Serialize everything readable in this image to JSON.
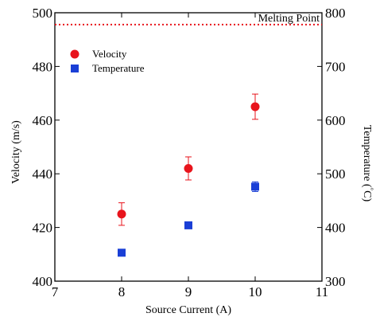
{
  "chart_data": {
    "type": "scatter",
    "title": "",
    "xlabel": "Source Current (A)",
    "ylabel": "Velocity (m/s)",
    "y2label_main": "Temperature (",
    "y2label_degree": "°",
    "y2label_unit": "C)",
    "xlim": [
      7,
      11
    ],
    "ylim": [
      400,
      500
    ],
    "y2lim": [
      300,
      800
    ],
    "x_ticks": [
      7,
      8,
      9,
      10,
      11
    ],
    "y_ticks": [
      400,
      420,
      440,
      460,
      480,
      500
    ],
    "y2_ticks": [
      300,
      400,
      500,
      600,
      700,
      800
    ],
    "grid": false,
    "legend_position": "upper-left",
    "series": [
      {
        "name": "Velocity",
        "axis": "left",
        "marker": "circle",
        "color": "#e8141c",
        "points": [
          {
            "x": 8,
            "y": 425,
            "err": 4.2
          },
          {
            "x": 9,
            "y": 442,
            "err": 4.3
          },
          {
            "x": 10,
            "y": 465,
            "err": 4.7
          }
        ]
      },
      {
        "name": "Temperature",
        "axis": "right",
        "marker": "square",
        "color": "#1a3fd6",
        "points": [
          {
            "x": 8,
            "y": 353,
            "err": 2
          },
          {
            "x": 9,
            "y": 404,
            "err": 5
          },
          {
            "x": 10,
            "y": 476,
            "err": 9
          }
        ]
      }
    ],
    "reference_lines": [
      {
        "label": "Melting Point",
        "axis": "right",
        "value": 778,
        "color": "#e8141c",
        "style": "dotted"
      }
    ]
  }
}
